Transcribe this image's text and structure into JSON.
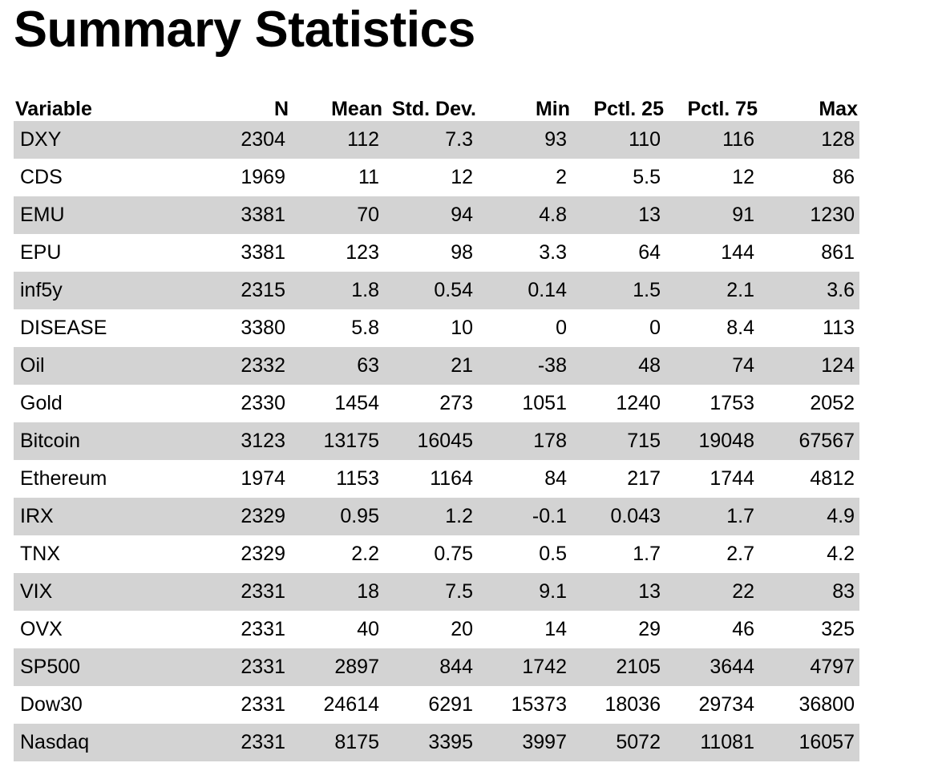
{
  "title": "Summary Statistics",
  "table": {
    "headers": [
      "Variable",
      "N",
      "Mean",
      "Std. Dev.",
      "Min",
      "Pctl. 25",
      "Pctl. 75",
      "Max"
    ],
    "rows": [
      [
        "DXY",
        "2304",
        "112",
        "7.3",
        "93",
        "110",
        "116",
        "128"
      ],
      [
        "CDS",
        "1969",
        "11",
        "12",
        "2",
        "5.5",
        "12",
        "86"
      ],
      [
        "EMU",
        "3381",
        "70",
        "94",
        "4.8",
        "13",
        "91",
        "1230"
      ],
      [
        "EPU",
        "3381",
        "123",
        "98",
        "3.3",
        "64",
        "144",
        "861"
      ],
      [
        "inf5y",
        "2315",
        "1.8",
        "0.54",
        "0.14",
        "1.5",
        "2.1",
        "3.6"
      ],
      [
        "DISEASE",
        "3380",
        "5.8",
        "10",
        "0",
        "0",
        "8.4",
        "113"
      ],
      [
        "Oil",
        "2332",
        "63",
        "21",
        "-38",
        "48",
        "74",
        "124"
      ],
      [
        "Gold",
        "2330",
        "1454",
        "273",
        "1051",
        "1240",
        "1753",
        "2052"
      ],
      [
        "Bitcoin",
        "3123",
        "13175",
        "16045",
        "178",
        "715",
        "19048",
        "67567"
      ],
      [
        "Ethereum",
        "1974",
        "1153",
        "1164",
        "84",
        "217",
        "1744",
        "4812"
      ],
      [
        "IRX",
        "2329",
        "0.95",
        "1.2",
        "-0.1",
        "0.043",
        "1.7",
        "4.9"
      ],
      [
        "TNX",
        "2329",
        "2.2",
        "0.75",
        "0.5",
        "1.7",
        "2.7",
        "4.2"
      ],
      [
        "VIX",
        "2331",
        "18",
        "7.5",
        "9.1",
        "13",
        "22",
        "83"
      ],
      [
        "OVX",
        "2331",
        "40",
        "20",
        "14",
        "29",
        "46",
        "325"
      ],
      [
        "SP500",
        "2331",
        "2897",
        "844",
        "1742",
        "2105",
        "3644",
        "4797"
      ],
      [
        "Dow30",
        "2331",
        "24614",
        "6291",
        "15373",
        "18036",
        "29734",
        "36800"
      ],
      [
        "Nasdaq",
        "2331",
        "8175",
        "3395",
        "3997",
        "5072",
        "11081",
        "16057"
      ]
    ]
  }
}
